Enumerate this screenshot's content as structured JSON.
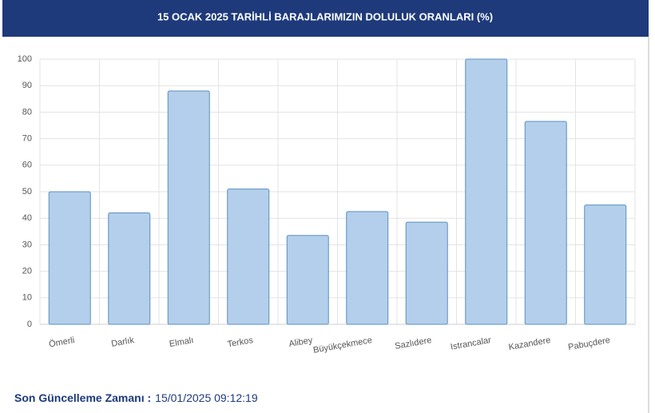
{
  "chart_data": {
    "type": "bar",
    "title": "15 OCAK 2025 TARİHLİ BARAJLARIMIZIN DOLULUK ORANLARI (%)",
    "categories": [
      "Ömerli",
      "Darlık",
      "Elmalı",
      "Terkos",
      "Alibey",
      "Büyükçekmece",
      "Sazlıdere",
      "Istrancalar",
      "Kazandere",
      "Pabuçdere"
    ],
    "values": [
      50,
      42,
      88,
      51,
      33.5,
      42.5,
      38.5,
      100,
      76.5,
      45
    ],
    "color": "#b3cfeb",
    "edge_color": "#5b8fc0",
    "ylim": [
      0,
      100
    ],
    "yticks": [
      0,
      10,
      20,
      30,
      40,
      50,
      60,
      70,
      80,
      90,
      100
    ],
    "grid": true
  },
  "footer": {
    "label": "Son Güncelleme Zamanı :",
    "value": "15/01/2025 09:12:19"
  }
}
